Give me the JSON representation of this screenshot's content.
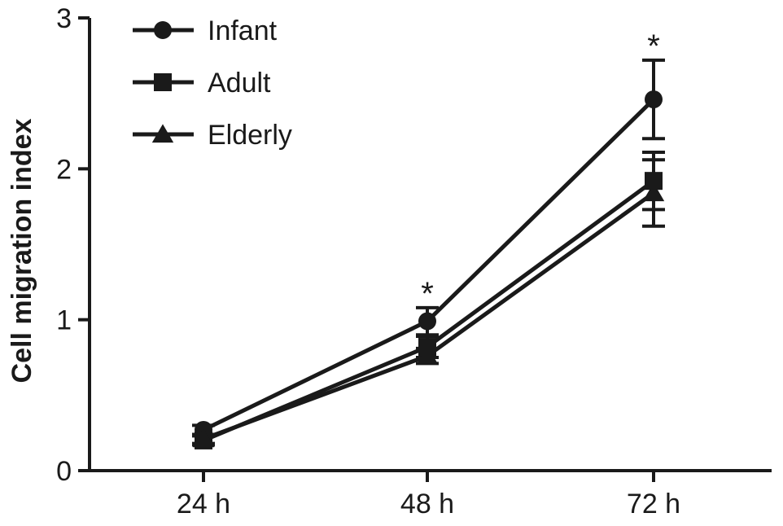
{
  "chart_data": {
    "type": "line",
    "categories": [
      "24 h",
      "48 h",
      "72 h"
    ],
    "ylabel": "Cell migration index",
    "ylim": [
      0,
      3
    ],
    "yticks": [
      0,
      1,
      2,
      3
    ],
    "grid": false,
    "legend_position": "top-left",
    "series": [
      {
        "name": "Infant",
        "marker": "circle",
        "values": [
          0.27,
          0.99,
          2.46
        ],
        "errors": [
          0.03,
          0.09,
          0.26
        ]
      },
      {
        "name": "Adult",
        "marker": "square",
        "values": [
          0.2,
          0.82,
          1.92
        ],
        "errors": [
          0.03,
          0.07,
          0.19
        ]
      },
      {
        "name": "Elderly",
        "marker": "triangle",
        "values": [
          0.21,
          0.76,
          1.84
        ],
        "errors": [
          0.03,
          0.05,
          0.22
        ]
      }
    ],
    "annotations": [
      {
        "category": "48 h",
        "text": "*"
      },
      {
        "category": "72 h",
        "text": "*"
      }
    ],
    "color": "#1a1a1a"
  }
}
